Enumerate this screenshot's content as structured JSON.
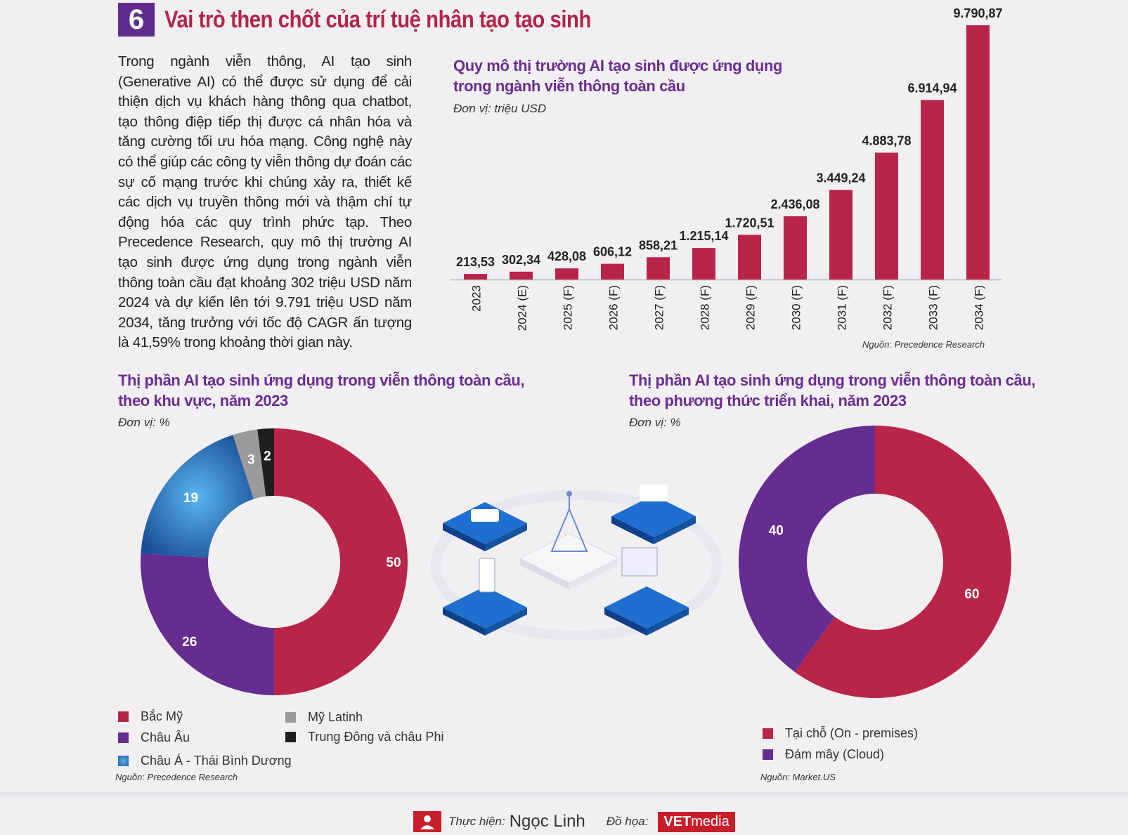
{
  "header": {
    "number": "6",
    "title": "Vai trò then chốt của trí tuệ nhân tạo tạo sinh"
  },
  "intro": "Trong ngành viễn thông, AI tạo sinh (Generative AI) có thể được sử dụng để cải thiện dịch vụ khách hàng thông qua chatbot, tạo thông điệp tiếp thị được cá nhân hóa và tăng cường tối ưu hóa mạng. Công nghệ này có thể giúp các công ty viễn thông dự đoán các sự cố mạng trước khi chúng xảy ra, thiết kế các dịch vụ truyền thông mới và thậm chí tự động hóa các quy trình phức tạp. Theo Precedence Research, quy mô thị trường AI tạo sinh được ứng dụng trong ngành viễn thông toàn cầu đạt khoảng 302 triệu USD năm 2024 và dự kiến lên tới 9.791 triệu USD năm 2034, tăng trưởng với tốc độ CAGR ấn tượng là 41,59% trong khoảng thời gian này.",
  "colors": {
    "crimson": "#b82549",
    "purple": "#662d91",
    "blue": "#1f5fa8",
    "gray": "#9a9a9a",
    "black": "#1e1e1e",
    "title": "#6b2d90"
  },
  "chart_data": [
    {
      "type": "bar",
      "title_line1": "Quy mô thị trường AI tạo sinh được ứng dụng",
      "title_line2": "trong ngành viễn thông toàn cầu",
      "unit": "Đơn vị: triệu USD",
      "source": "Nguồn: Precedence Research",
      "categories": [
        "2023",
        "2024 (E)",
        "2025 (F)",
        "2026 (F)",
        "2027 (F)",
        "2028 (F)",
        "2029 (F)",
        "2030 (F)",
        "2031 (F)",
        "2032 (F)",
        "2033 (F)",
        "2034 (F)"
      ],
      "values": [
        213.53,
        302.34,
        428.08,
        606.12,
        858.21,
        1215.14,
        1720.51,
        2436.08,
        3449.24,
        4883.78,
        6914.94,
        9790.87
      ],
      "labels": [
        "213,53",
        "302,34",
        "428,08",
        "606,12",
        "858,21",
        "1.215,14",
        "1.720,51",
        "2.436,08",
        "3.449,24",
        "4.883,78",
        "6.914,94",
        "9.790,87"
      ],
      "ylim": [
        0,
        9790.87
      ]
    },
    {
      "type": "pie",
      "title_line1": "Thị phần AI tạo sinh ứng dụng trong viễn thông toàn cầu,",
      "title_line2": "theo khu vực, năm 2023",
      "unit": "Đơn vị: %",
      "source": "Nguồn: Precedence Research",
      "slices": [
        {
          "name": "Bắc Mỹ",
          "value": 50,
          "label": "50",
          "color": "#b82549"
        },
        {
          "name": "Châu Âu",
          "value": 26,
          "label": "26",
          "color": "#662d91"
        },
        {
          "name": "Châu Á - Thái Bình Dương",
          "value": 19,
          "label": "19",
          "color": "#1f5fa8"
        },
        {
          "name": "Mỹ Latinh",
          "value": 3,
          "label": "3",
          "color": "#9a9a9a"
        },
        {
          "name": "Trung Đông và châu Phi",
          "value": 2,
          "label": "2",
          "color": "#1e1e1e"
        }
      ]
    },
    {
      "type": "pie",
      "title_line1": "Thị phần AI tạo sinh ứng dụng trong viễn thông toàn cầu,",
      "title_line2": "theo phương thức triển khai, năm 2023",
      "unit": "Đơn vị: %",
      "source": "Nguồn: Market.US",
      "slices": [
        {
          "name": "Tại chỗ (On - premises)",
          "value": 60,
          "label": "60",
          "color": "#b82549"
        },
        {
          "name": "Đám mây (Cloud)",
          "value": 40,
          "label": "40",
          "color": "#662d91"
        }
      ]
    }
  ],
  "footer": {
    "author_label": "Thực hiện:",
    "author": "Ngọc Linh",
    "graphic_label": "Đồ họa:",
    "brand_bold": "VET",
    "brand_rest": "media"
  }
}
